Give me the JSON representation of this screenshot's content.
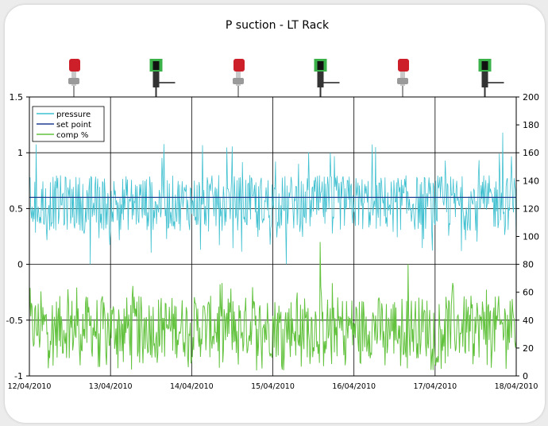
{
  "chart_data": {
    "type": "line",
    "title": "P suction - LT Rack",
    "x_ticks": [
      "12/04/2010",
      "13/04/2010",
      "14/04/2010",
      "15/04/2010",
      "16/04/2010",
      "17/04/2010",
      "18/04/2010"
    ],
    "x_range": [
      "12/04/2010",
      "18/04/2010"
    ],
    "y_left": {
      "ticks": [
        "1.5",
        "1",
        "0.5",
        "0",
        "-0.5",
        "-1"
      ],
      "range": [
        -1,
        1.5
      ]
    },
    "y_right": {
      "ticks": [
        "200",
        "180",
        "160",
        "140",
        "120",
        "100",
        "80",
        "60",
        "40",
        "20",
        "0"
      ],
      "range": [
        0,
        200
      ]
    },
    "grid": true,
    "legend": "top-left",
    "series": [
      {
        "name": "pressure",
        "axis": "left",
        "color": "#3fc0d0",
        "typical_value": 0.55,
        "typical_min": 0.3,
        "typical_max": 0.8,
        "peak": 1.18,
        "trough": 0.0
      },
      {
        "name": "set point",
        "axis": "left",
        "color": "#1f3f8f",
        "value": 0.6
      },
      {
        "name": "comp %",
        "axis": "right",
        "color": "#62c23e",
        "typical_value": 35,
        "typical_min": 10,
        "typical_max": 55,
        "peak": 96,
        "trough": 0
      }
    ],
    "valve_icons": [
      "red-valve-open-icon",
      "green-valve-closed-icon",
      "red-valve-open-icon",
      "green-valve-closed-icon",
      "red-valve-open-icon",
      "green-valve-closed-icon"
    ]
  }
}
